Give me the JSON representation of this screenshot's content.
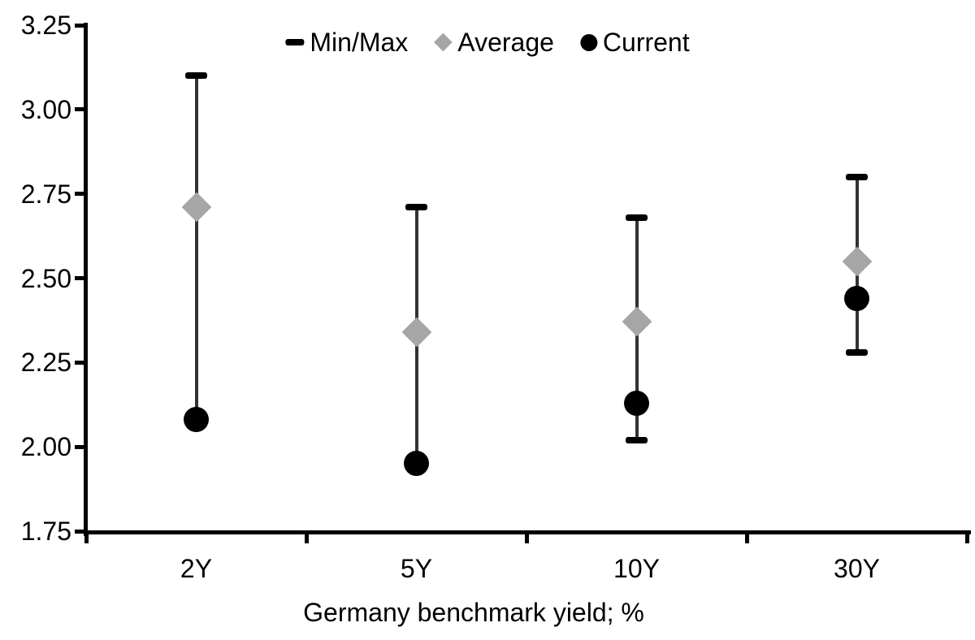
{
  "figure": {
    "background": "#ffffff"
  },
  "colors": {
    "axis": "#000000",
    "range_line": "#333333",
    "min_max_cap": "#000000",
    "average_marker": "#a6a6a6",
    "current_marker": "#000000",
    "text": "#000000"
  },
  "legend": {
    "position": "top-center",
    "items": [
      {
        "label": "Min/Max",
        "marker": "dash-icon"
      },
      {
        "label": "Average",
        "marker": "diamond-icon"
      },
      {
        "label": "Current",
        "marker": "circle-icon"
      }
    ]
  },
  "chart_data": {
    "type": "scatter",
    "subtype": "min-max-range-with-average-and-current",
    "title": "",
    "xlabel": "Germany benchmark yield; %",
    "ylabel": "",
    "categories": [
      "2Y",
      "5Y",
      "10Y",
      "30Y"
    ],
    "series": [
      {
        "name": "Min/Max",
        "role": "range",
        "min": [
          2.08,
          1.95,
          2.02,
          2.28
        ],
        "max": [
          3.1,
          2.71,
          2.68,
          2.8
        ]
      },
      {
        "name": "Average",
        "role": "point",
        "marker": "diamond",
        "values": [
          2.71,
          2.34,
          2.37,
          2.55
        ]
      },
      {
        "name": "Current",
        "role": "point",
        "marker": "circle",
        "values": [
          2.08,
          1.95,
          2.13,
          2.44
        ]
      }
    ],
    "ylim": [
      1.75,
      3.25
    ],
    "ytick_labels": [
      "3.25",
      "3.00",
      "2.75",
      "2.50",
      "2.25",
      "2.00",
      "1.75"
    ],
    "ytick_values": [
      3.25,
      3.0,
      2.75,
      2.5,
      2.25,
      2.0,
      1.75
    ],
    "grid": false,
    "legend_position": "top"
  }
}
